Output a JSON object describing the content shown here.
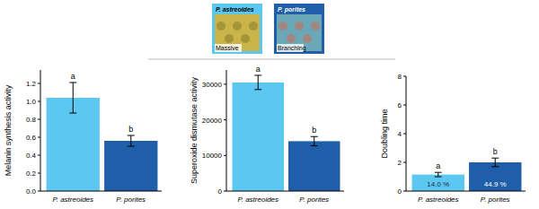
{
  "chart_data": [
    {
      "type": "bar",
      "y_label": "Melanin synthesis activity",
      "categories": [
        "P. astreoides",
        "P. porites"
      ],
      "values": [
        1.04,
        0.56
      ],
      "errors": [
        0.17,
        0.06
      ],
      "annotations": [
        "a",
        "b"
      ],
      "colors": [
        "#5cc8f2",
        "#1f5ea8"
      ],
      "ylim": [
        0,
        1.35
      ],
      "yticks": [
        {
          "value": 0,
          "label": "0.0"
        },
        0.2,
        0.4,
        0.6,
        0.8,
        {
          "value": 1,
          "label": "1.0"
        },
        1.2
      ],
      "grid": false
    },
    {
      "type": "bar",
      "y_label": "Superoxide dismutase activity",
      "categories": [
        "P. astreoides",
        "P. porites"
      ],
      "values": [
        30500,
        14000
      ],
      "errors": [
        2000,
        1300
      ],
      "annotations": [
        "a",
        "b"
      ],
      "colors": [
        "#5cc8f2",
        "#1f5ea8"
      ],
      "ylim": [
        0,
        34000
      ],
      "yticks": [
        0,
        10000,
        20000,
        30000
      ],
      "grid": false
    },
    {
      "type": "bar",
      "y_label": "Doubling time",
      "categories": [
        "P. astreoides",
        "P. porites"
      ],
      "values": [
        1.15,
        2.0
      ],
      "errors": [
        0.15,
        0.3
      ],
      "annotations": [
        "a",
        "b"
      ],
      "bar_texts": [
        "14.0 %",
        "44.9 %"
      ],
      "colors": [
        "#5cc8f2",
        "#1f5ea8"
      ],
      "ylim": [
        0,
        8
      ],
      "yticks": [
        0,
        2,
        4,
        6,
        8
      ],
      "grid": false
    }
  ],
  "images": [
    {
      "label": "P. astreoides",
      "caption": "Massive"
    },
    {
      "label": "P. porites",
      "caption": "Branching"
    }
  ]
}
